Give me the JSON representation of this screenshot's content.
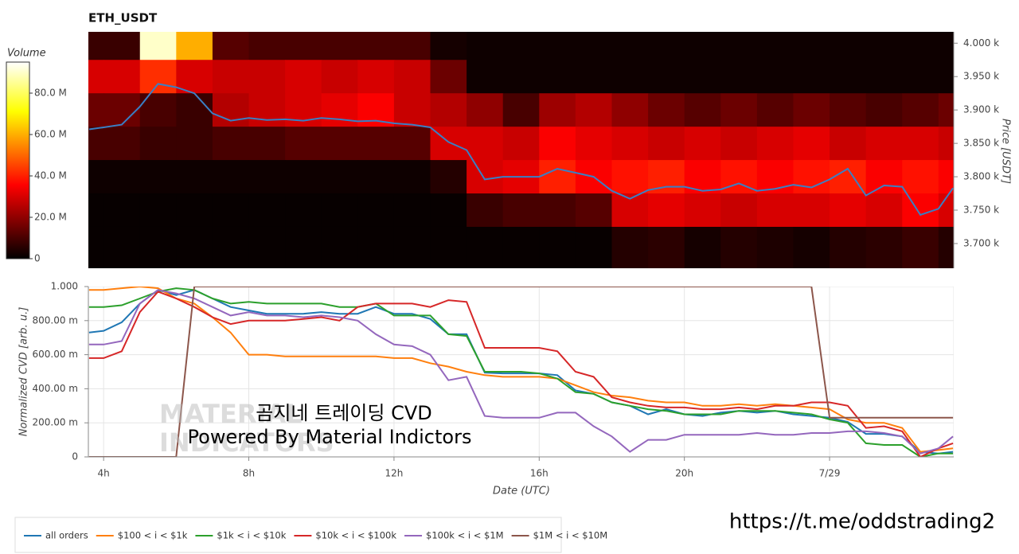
{
  "chart_data": [
    {
      "type": "heatmap",
      "title": "ETH_USDT",
      "y_label": "Price [USDT]",
      "xlim": [
        3.58,
        27.42
      ],
      "ylim": [
        3663,
        4017
      ],
      "yticks": [
        {
          "value": 4000,
          "label": "4.000 k"
        },
        {
          "value": 3950,
          "label": "3.950 k"
        },
        {
          "value": 3900,
          "label": "3.900 k"
        },
        {
          "value": 3850,
          "label": "3.850 k"
        },
        {
          "value": 3800,
          "label": "3.800 k"
        },
        {
          "value": 3750,
          "label": "3.750 k"
        },
        {
          "value": 3700,
          "label": "3.700 k"
        }
      ],
      "x_edges": [
        3,
        4,
        5,
        6,
        7,
        8,
        9,
        10,
        11,
        12,
        13,
        14,
        15,
        16,
        17,
        18,
        19,
        20,
        21,
        22,
        23,
        24,
        25,
        26,
        27,
        28
      ],
      "y_edges": [
        4025,
        3975,
        3925,
        3875,
        3825,
        3775,
        3725,
        3650
      ],
      "z": [
        [
          8,
          8,
          90,
          60,
          12,
          10,
          10,
          10,
          10,
          10,
          3,
          2,
          2,
          2,
          2,
          2,
          2,
          2,
          2,
          2,
          2,
          2,
          2,
          2,
          2
        ],
        [
          30,
          30,
          42,
          30,
          28,
          28,
          30,
          28,
          30,
          28,
          15,
          2,
          2,
          2,
          2,
          2,
          2,
          2,
          2,
          2,
          2,
          2,
          2,
          2,
          2
        ],
        [
          15,
          15,
          10,
          8,
          25,
          28,
          30,
          32,
          35,
          28,
          25,
          20,
          10,
          22,
          25,
          20,
          15,
          12,
          15,
          12,
          15,
          12,
          10,
          12,
          15
        ],
        [
          10,
          10,
          8,
          8,
          10,
          10,
          12,
          12,
          12,
          12,
          30,
          30,
          28,
          35,
          32,
          30,
          28,
          30,
          28,
          30,
          32,
          28,
          30,
          30,
          28
        ],
        [
          2,
          2,
          2,
          2,
          2,
          2,
          2,
          2,
          2,
          2,
          5,
          30,
          32,
          40,
          35,
          38,
          40,
          35,
          38,
          35,
          38,
          40,
          35,
          38,
          35
        ],
        [
          1,
          1,
          1,
          1,
          1,
          1,
          1,
          1,
          1,
          1,
          1,
          8,
          10,
          10,
          12,
          30,
          32,
          30,
          28,
          30,
          30,
          32,
          30,
          35,
          30
        ],
        [
          1,
          1,
          1,
          1,
          1,
          1,
          1,
          1,
          1,
          1,
          1,
          1,
          1,
          1,
          1,
          5,
          6,
          3,
          5,
          4,
          3,
          5,
          6,
          8,
          5
        ]
      ],
      "colorbar": {
        "label": "Volume",
        "lim": [
          0,
          95
        ],
        "ticks": [
          0,
          {
            "value": 20,
            "label": "20.0 M"
          },
          {
            "value": 40,
            "label": "40.0 M"
          },
          {
            "value": 60,
            "label": "60.0 M"
          },
          {
            "value": 80,
            "label": "80.0 M"
          }
        ]
      },
      "line": {
        "color": "#3a7fc4",
        "x": [
          3.6,
          4,
          4.5,
          5,
          5.5,
          6,
          6.5,
          7,
          7.5,
          8,
          8.5,
          9,
          9.5,
          10,
          10.5,
          11,
          11.5,
          12,
          12.5,
          13,
          13.5,
          14,
          14.5,
          15,
          15.5,
          16,
          16.5,
          17,
          17.5,
          18,
          18.5,
          19,
          19.5,
          20,
          20.5,
          21,
          21.5,
          22,
          22.5,
          23,
          23.5,
          24,
          24.5,
          25,
          25.5,
          26,
          26.5,
          27,
          27.4
        ],
        "values": [
          3871,
          3874,
          3878,
          3905,
          3939,
          3934,
          3925,
          3895,
          3884,
          3888,
          3885,
          3886,
          3884,
          3888,
          3886,
          3883,
          3884,
          3880,
          3878,
          3874,
          3852,
          3840,
          3796,
          3800,
          3800,
          3800,
          3812,
          3806,
          3800,
          3779,
          3767,
          3780,
          3785,
          3785,
          3779,
          3781,
          3790,
          3779,
          3782,
          3788,
          3784,
          3796,
          3812,
          3772,
          3787,
          3785,
          3743,
          3752,
          3783
        ]
      }
    },
    {
      "type": "line",
      "x_label": "Date (UTC)",
      "y_label": "Normalized CVD [arb. u.]",
      "xlim": [
        3.58,
        27.42
      ],
      "ylim": [
        0,
        1
      ],
      "xticks": [
        {
          "value": 4,
          "label": "4h"
        },
        {
          "value": 8,
          "label": "8h"
        },
        {
          "value": 12,
          "label": "12h"
        },
        {
          "value": 16,
          "label": "16h"
        },
        {
          "value": 20,
          "label": "20h"
        },
        {
          "value": 24,
          "label": "7/29"
        }
      ],
      "yticks": [
        0,
        {
          "value": 0.2,
          "label": "200.00 m"
        },
        {
          "value": 0.4,
          "label": "400.00 m"
        },
        {
          "value": 0.6,
          "label": "600.00 m"
        },
        {
          "value": 0.8,
          "label": "800.00 m"
        },
        {
          "value": 1,
          "label": "1.000"
        }
      ],
      "grid": true,
      "legend": "bottom-left",
      "x": [
        3.6,
        4,
        4.5,
        5,
        5.5,
        6,
        6.5,
        7,
        7.5,
        8,
        8.5,
        9,
        9.5,
        10,
        10.5,
        11,
        11.5,
        12,
        12.5,
        13,
        13.5,
        14,
        14.5,
        15,
        15.5,
        16,
        16.5,
        17,
        17.5,
        18,
        18.5,
        19,
        19.5,
        20,
        20.5,
        21,
        21.5,
        22,
        22.5,
        23,
        23.5,
        24,
        24.5,
        25,
        25.5,
        26,
        26.5,
        27,
        27.4
      ],
      "series": [
        {
          "name": "all orders",
          "color": "#1f77b4",
          "values": [
            0.73,
            0.74,
            0.79,
            0.9,
            0.98,
            0.95,
            0.98,
            0.93,
            0.88,
            0.86,
            0.84,
            0.84,
            0.84,
            0.85,
            0.84,
            0.84,
            0.88,
            0.84,
            0.84,
            0.81,
            0.72,
            0.72,
            0.495,
            0.49,
            0.49,
            0.49,
            0.48,
            0.39,
            0.37,
            0.32,
            0.3,
            0.25,
            0.28,
            0.25,
            0.24,
            0.26,
            0.27,
            0.26,
            0.27,
            0.25,
            0.24,
            0.23,
            0.205,
            0.135,
            0.135,
            0.12,
            0.03,
            0.02,
            0.03
          ]
        },
        {
          "name": "$100 < i < $1k",
          "color": "#ff7f0e",
          "values": [
            0.98,
            0.98,
            0.99,
            1.0,
            0.99,
            0.93,
            0.9,
            0.82,
            0.73,
            0.6,
            0.6,
            0.59,
            0.59,
            0.59,
            0.59,
            0.59,
            0.59,
            0.58,
            0.58,
            0.55,
            0.53,
            0.5,
            0.48,
            0.47,
            0.47,
            0.47,
            0.46,
            0.42,
            0.38,
            0.36,
            0.35,
            0.33,
            0.32,
            0.32,
            0.3,
            0.3,
            0.31,
            0.3,
            0.31,
            0.3,
            0.29,
            0.28,
            0.22,
            0.2,
            0.2,
            0.17,
            0.03,
            0.04,
            0.05
          ]
        },
        {
          "name": "$1k < i < $10k",
          "color": "#2ca02c",
          "values": [
            0.88,
            0.88,
            0.89,
            0.93,
            0.97,
            0.99,
            0.98,
            0.93,
            0.9,
            0.91,
            0.9,
            0.9,
            0.9,
            0.9,
            0.88,
            0.88,
            0.9,
            0.83,
            0.83,
            0.83,
            0.72,
            0.71,
            0.5,
            0.5,
            0.5,
            0.49,
            0.46,
            0.38,
            0.37,
            0.32,
            0.3,
            0.28,
            0.27,
            0.25,
            0.25,
            0.25,
            0.27,
            0.27,
            0.27,
            0.26,
            0.25,
            0.22,
            0.2,
            0.08,
            0.07,
            0.07,
            0.0,
            0.02,
            0.02
          ]
        },
        {
          "name": "$10k < i < $100k",
          "color": "#d62728",
          "values": [
            0.58,
            0.58,
            0.62,
            0.85,
            0.97,
            0.93,
            0.88,
            0.82,
            0.78,
            0.8,
            0.8,
            0.8,
            0.81,
            0.82,
            0.8,
            0.88,
            0.9,
            0.9,
            0.9,
            0.88,
            0.92,
            0.91,
            0.64,
            0.64,
            0.64,
            0.64,
            0.62,
            0.5,
            0.47,
            0.35,
            0.32,
            0.3,
            0.29,
            0.29,
            0.28,
            0.28,
            0.29,
            0.28,
            0.3,
            0.3,
            0.32,
            0.32,
            0.3,
            0.17,
            0.18,
            0.15,
            0.0,
            0.05,
            0.08
          ]
        },
        {
          "name": "$100k < i < $1M",
          "color": "#9467bd",
          "values": [
            0.66,
            0.66,
            0.68,
            0.9,
            0.98,
            0.96,
            0.93,
            0.88,
            0.83,
            0.85,
            0.83,
            0.83,
            0.82,
            0.83,
            0.82,
            0.8,
            0.72,
            0.66,
            0.65,
            0.6,
            0.45,
            0.47,
            0.24,
            0.23,
            0.23,
            0.23,
            0.26,
            0.26,
            0.18,
            0.12,
            0.03,
            0.1,
            0.1,
            0.13,
            0.13,
            0.13,
            0.13,
            0.14,
            0.13,
            0.13,
            0.14,
            0.14,
            0.15,
            0.15,
            0.14,
            0.12,
            0.02,
            0.05,
            0.12
          ]
        },
        {
          "name": "$1M < i < $10M",
          "color": "#8c564b",
          "values": [
            0,
            0,
            0,
            0,
            0,
            0,
            1,
            1,
            1,
            1,
            1,
            1,
            1,
            1,
            1,
            1,
            1,
            1,
            1,
            1,
            1,
            1,
            1,
            1,
            1,
            1,
            1,
            1,
            1,
            1,
            1,
            1,
            1,
            1,
            1,
            1,
            1,
            1,
            1,
            1,
            1,
            0.23,
            0.23,
            0.23,
            0.23,
            0.23,
            0.23,
            0.23,
            0.23
          ]
        }
      ],
      "watermark": [
        "MATERIAL",
        "INDICATORS"
      ],
      "annotations": [
        "곰지네 트레이딩 CVD",
        "Powered By Material Indictors"
      ]
    }
  ],
  "link": "https://t.me/oddstrading2"
}
